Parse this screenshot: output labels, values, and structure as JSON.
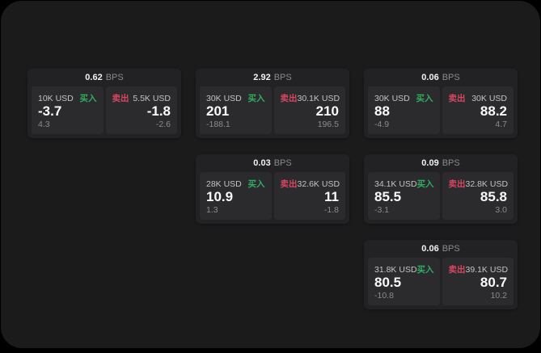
{
  "labels": {
    "bps_unit": "BPS",
    "buy": "买入",
    "sell": "卖出"
  },
  "colors": {
    "buy_green": "#2fae62",
    "sell_red": "#d8465f",
    "background": "#000000",
    "surface": "#1b1b1c",
    "card": "#222224",
    "panel": "#2b2b2d"
  },
  "cards": [
    {
      "bps": "0.62",
      "buy": {
        "amount": "10K USD",
        "value": "-3.7",
        "delta": "4.3"
      },
      "sell": {
        "amount": "5.5K USD",
        "value": "-1.8",
        "delta": "-2.6"
      }
    },
    {
      "bps": "2.92",
      "buy": {
        "amount": "30K USD",
        "value": "201",
        "delta": "-188.1"
      },
      "sell": {
        "amount": "30.1K USD",
        "value": "210",
        "delta": "196.5"
      }
    },
    {
      "bps": "0.06",
      "buy": {
        "amount": "30K USD",
        "value": "88",
        "delta": "-4.9"
      },
      "sell": {
        "amount": "30K USD",
        "value": "88.2",
        "delta": "4.7"
      }
    },
    {
      "bps": "0.03",
      "buy": {
        "amount": "28K USD",
        "value": "10.9",
        "delta": "1.3"
      },
      "sell": {
        "amount": "32.6K USD",
        "value": "11",
        "delta": "-1.8"
      }
    },
    {
      "bps": "0.09",
      "buy": {
        "amount": "34.1K USD",
        "value": "85.5",
        "delta": "-3.1"
      },
      "sell": {
        "amount": "32.8K USD",
        "value": "85.8",
        "delta": "3.0"
      }
    },
    {
      "bps": "0.06",
      "buy": {
        "amount": "31.8K USD",
        "value": "80.5",
        "delta": "-10.8"
      },
      "sell": {
        "amount": "39.1K USD",
        "value": "80.7",
        "delta": "10.2"
      }
    }
  ]
}
